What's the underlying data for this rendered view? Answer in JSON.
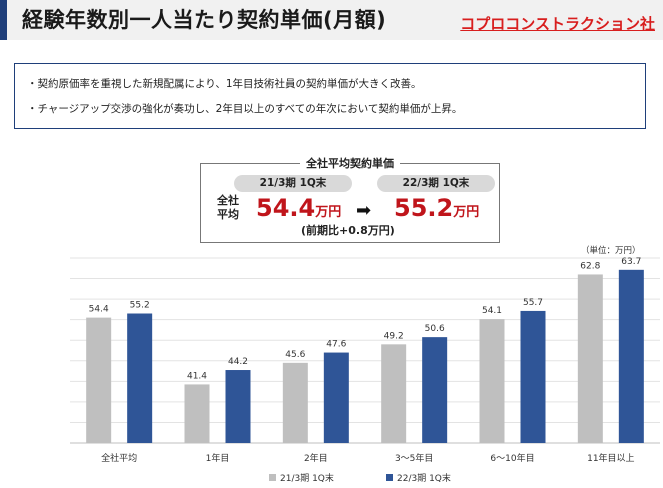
{
  "header": {
    "title": "経験年数別一人当たり契約単価(月額)",
    "company": "コプロコンストラクション社"
  },
  "bullets": [
    "・契約原価率を重視した新規配属により、1年目技術社員の契約単価が大きく改善。",
    "・チャージアップ交渉の強化が奏功し、2年目以上のすべての年次において契約単価が上昇。"
  ],
  "summary": {
    "title": "全社平均契約単価",
    "label_side": [
      "全社",
      "平均"
    ],
    "period_prev": "21/3期 1Q末",
    "period_curr": "22/3期 1Q末",
    "value_prev": "54.4",
    "value_curr": "55.2",
    "unit": "万円",
    "arrow": "➡",
    "diff": "(前期比+0.8万円)"
  },
  "unit_label": "（単位：万円）",
  "colors": {
    "prev": "#bfbfbf",
    "curr": "#2f5597",
    "accent": "#c0151b",
    "brand": "#1f3f7a"
  },
  "chart_data": {
    "type": "bar",
    "categories": [
      "全社平均",
      "1年目",
      "2年目",
      "3～5年目",
      "6～10年目",
      "11年目以上"
    ],
    "series": [
      {
        "name": "21/3期 1Q末",
        "values": [
          54.4,
          41.4,
          45.6,
          49.2,
          54.1,
          62.8
        ]
      },
      {
        "name": "22/3期 1Q末",
        "values": [
          55.2,
          44.2,
          47.6,
          50.6,
          55.7,
          63.7
        ]
      }
    ],
    "ylim": [
      30,
      66
    ],
    "grid": true,
    "legend": "bottom-center"
  }
}
